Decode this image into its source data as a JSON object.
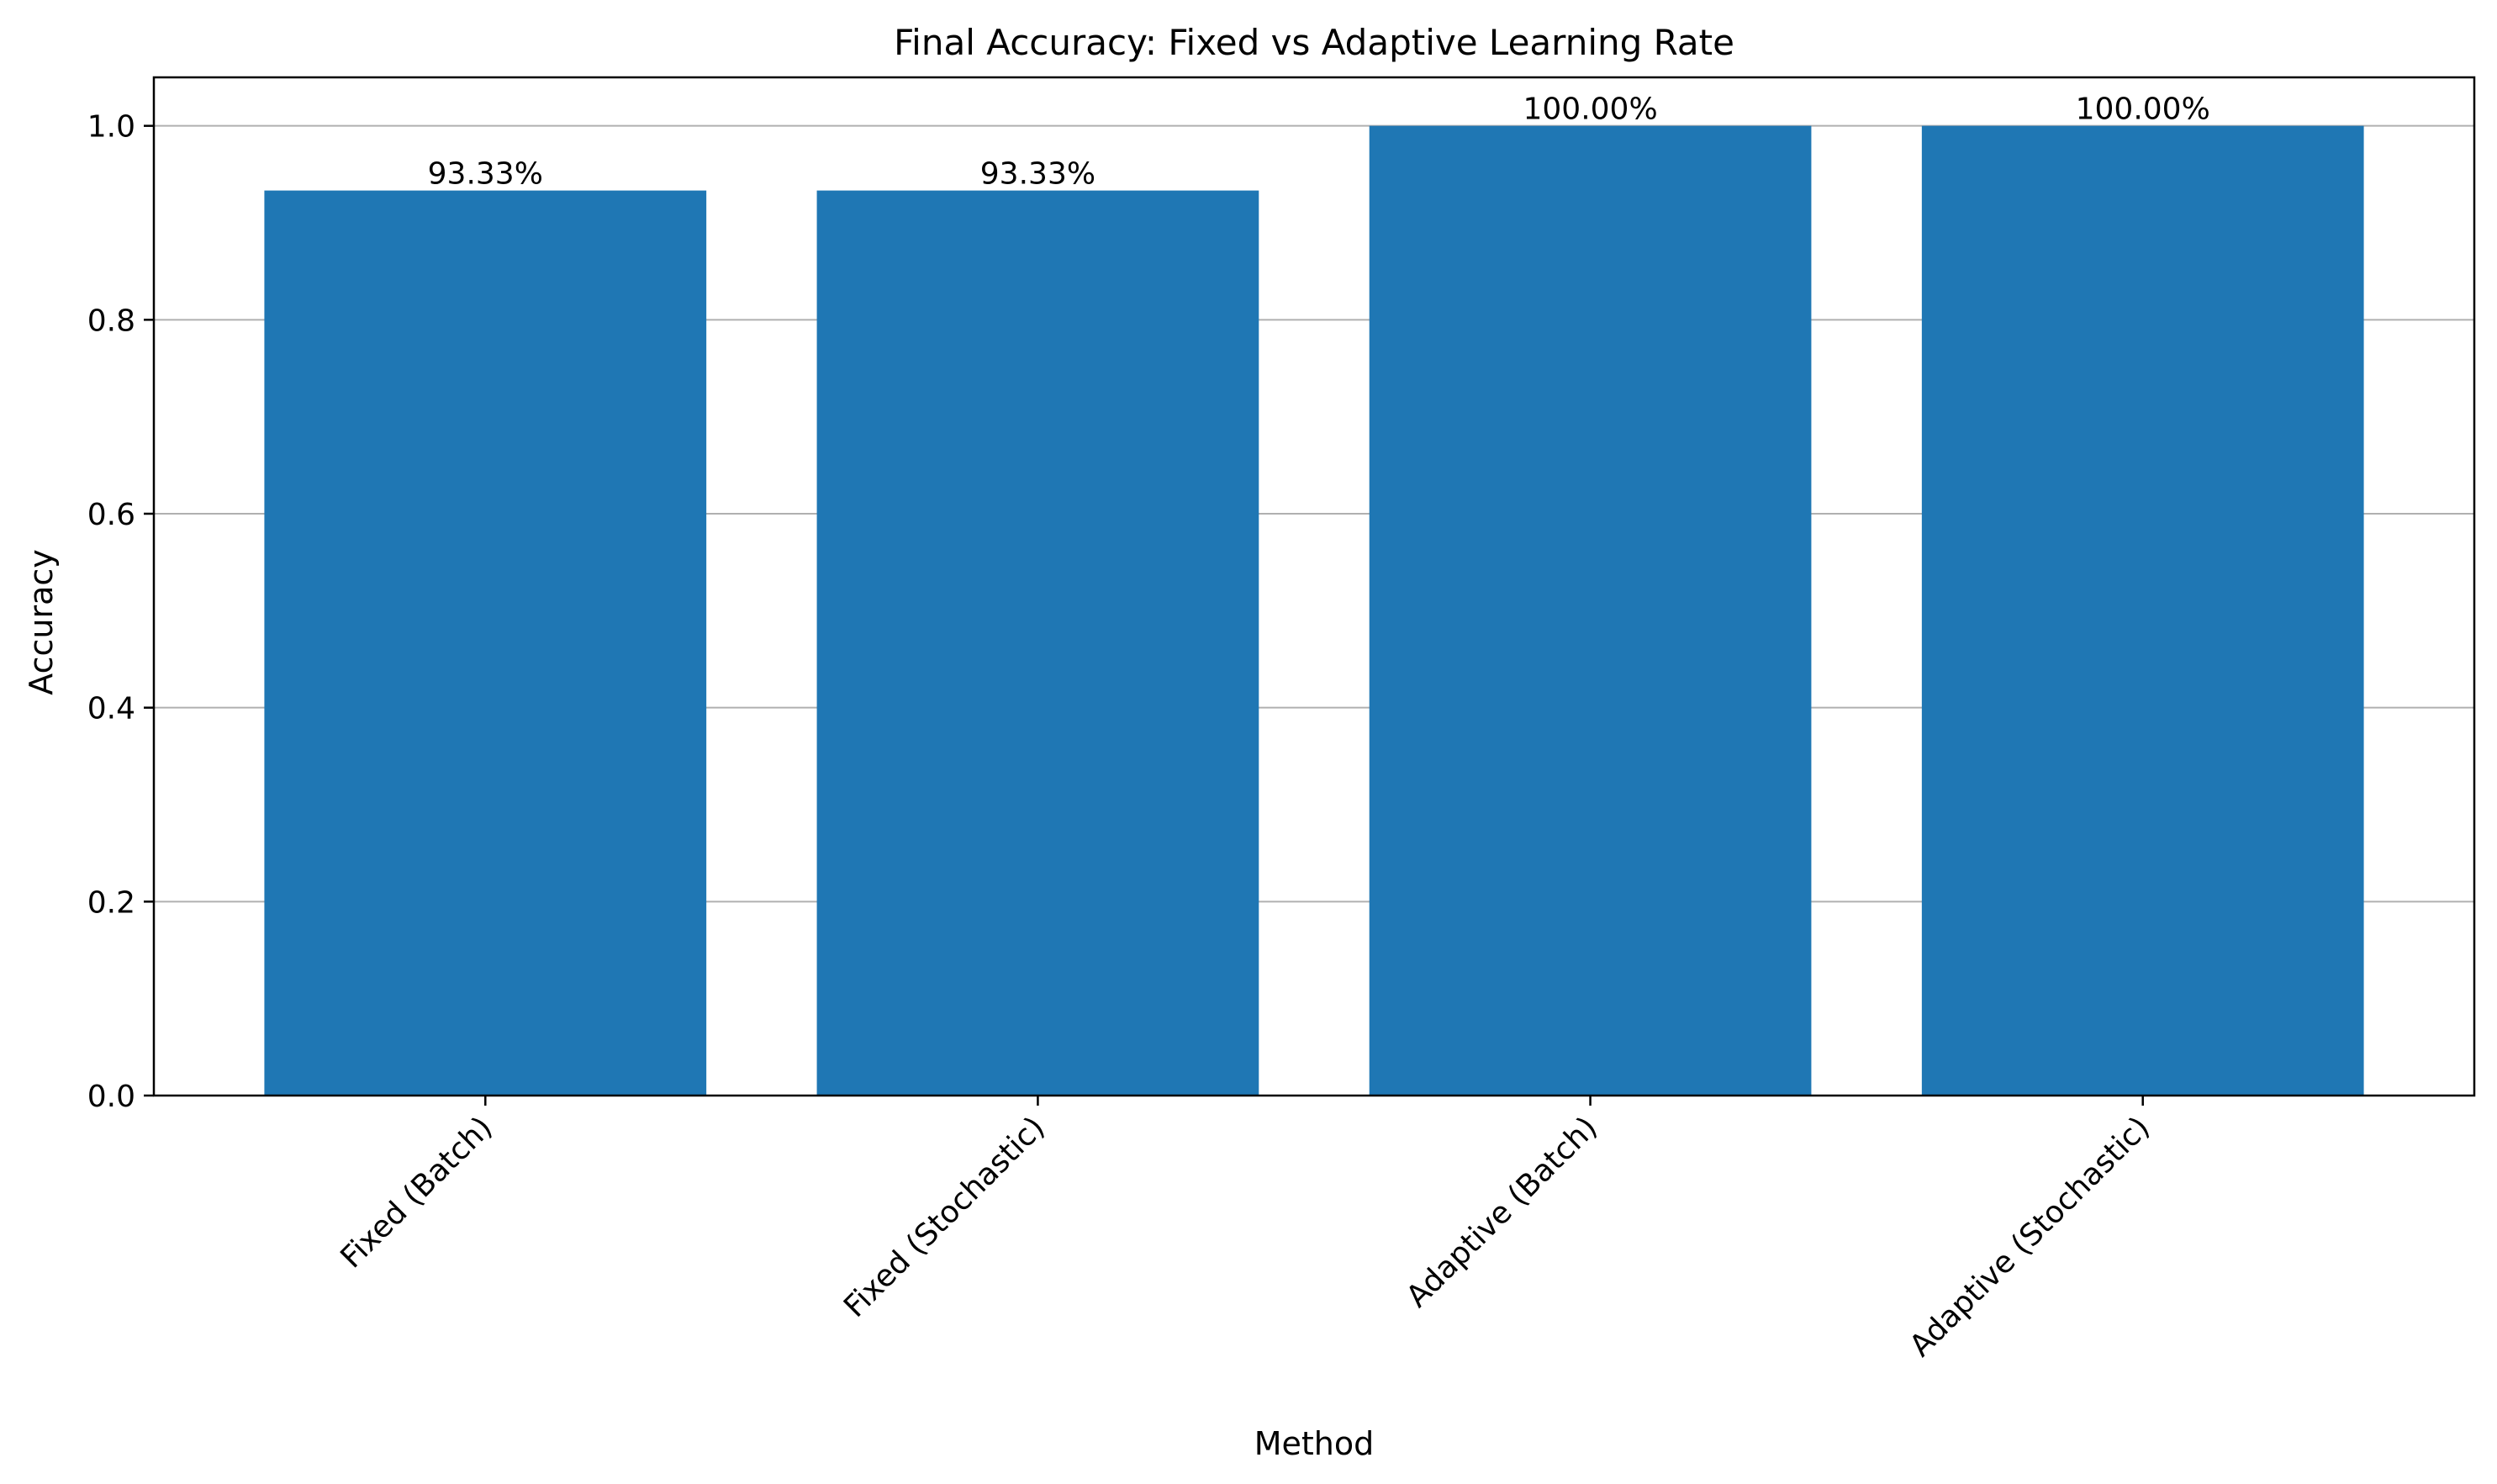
{
  "chart_data": {
    "type": "bar",
    "title": "Final Accuracy: Fixed vs Adaptive Learning Rate",
    "xlabel": "Method",
    "ylabel": "Accuracy",
    "categories": [
      "Fixed (Batch)",
      "Fixed (Stochastic)",
      "Adaptive (Batch)",
      "Adaptive (Stochastic)"
    ],
    "values": [
      0.9333,
      0.9333,
      1.0,
      1.0
    ],
    "value_labels": [
      "93.33%",
      "93.33%",
      "100.00%",
      "100.00%"
    ],
    "ylim": [
      0,
      1.05
    ],
    "yticks": [
      0.0,
      0.2,
      0.4,
      0.6,
      0.8,
      1.0
    ],
    "ytick_labels": [
      "0.0",
      "0.2",
      "0.4",
      "0.6",
      "0.8",
      "1.0"
    ],
    "grid": "y-axis major",
    "bar_color": "#1f77b4",
    "grid_color": "#b0b0b0"
  }
}
